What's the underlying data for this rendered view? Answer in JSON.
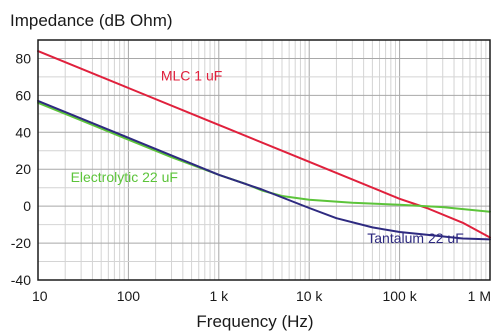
{
  "chart_data": {
    "type": "line",
    "title": "Impedance (dB Ohm)",
    "xlabel": "Frequency (Hz)",
    "ylabel": "",
    "xscale": "log",
    "xlim": [
      10,
      1000000
    ],
    "ylim": [
      -40,
      90
    ],
    "grid": true,
    "x_ticks": [
      {
        "value": 10,
        "label": "10"
      },
      {
        "value": 100,
        "label": "100"
      },
      {
        "value": 1000,
        "label": "1 k"
      },
      {
        "value": 10000,
        "label": "10 k"
      },
      {
        "value": 100000,
        "label": "100 k"
      },
      {
        "value": 1000000,
        "label": "1 M"
      }
    ],
    "y_ticks": [
      {
        "value": -40,
        "label": "-40"
      },
      {
        "value": -20,
        "label": "-20"
      },
      {
        "value": 0,
        "label": "0"
      },
      {
        "value": 20,
        "label": "20"
      },
      {
        "value": 40,
        "label": "40"
      },
      {
        "value": 60,
        "label": "60"
      },
      {
        "value": 80,
        "label": "80"
      }
    ],
    "series": [
      {
        "name": "MLC 1 uF",
        "color": "#e0203c",
        "label_at": {
          "x": 500,
          "y": 68
        },
        "points": [
          [
            10,
            84
          ],
          [
            100,
            64
          ],
          [
            1000,
            44
          ],
          [
            10000,
            24
          ],
          [
            100000,
            4
          ],
          [
            200000,
            -1
          ],
          [
            500000,
            -9
          ],
          [
            1000000,
            -17
          ]
        ]
      },
      {
        "name": "Electrolytic 22 uF",
        "color": "#5cc43a",
        "label_at": {
          "x": 90,
          "y": 13
        },
        "points": [
          [
            10,
            56
          ],
          [
            30,
            46.5
          ],
          [
            100,
            36
          ],
          [
            300,
            26.5
          ],
          [
            1000,
            17
          ],
          [
            2000,
            12
          ],
          [
            3000,
            8.5
          ],
          [
            5000,
            5.5
          ],
          [
            10000,
            3.5
          ],
          [
            30000,
            1.8
          ],
          [
            100000,
            0.8
          ],
          [
            300000,
            -0.5
          ],
          [
            1000000,
            -3
          ]
        ]
      },
      {
        "name": "Tantalum 22 uF",
        "color": "#2e2a80",
        "label_at": {
          "x": 150000,
          "y": -20
        },
        "points": [
          [
            10,
            57
          ],
          [
            100,
            37
          ],
          [
            1000,
            17
          ],
          [
            3000,
            9
          ],
          [
            10000,
            -1
          ],
          [
            20000,
            -6.5
          ],
          [
            50000,
            -11.5
          ],
          [
            100000,
            -14
          ],
          [
            200000,
            -15.5
          ],
          [
            500000,
            -17.5
          ],
          [
            1000000,
            -18
          ]
        ]
      }
    ]
  }
}
